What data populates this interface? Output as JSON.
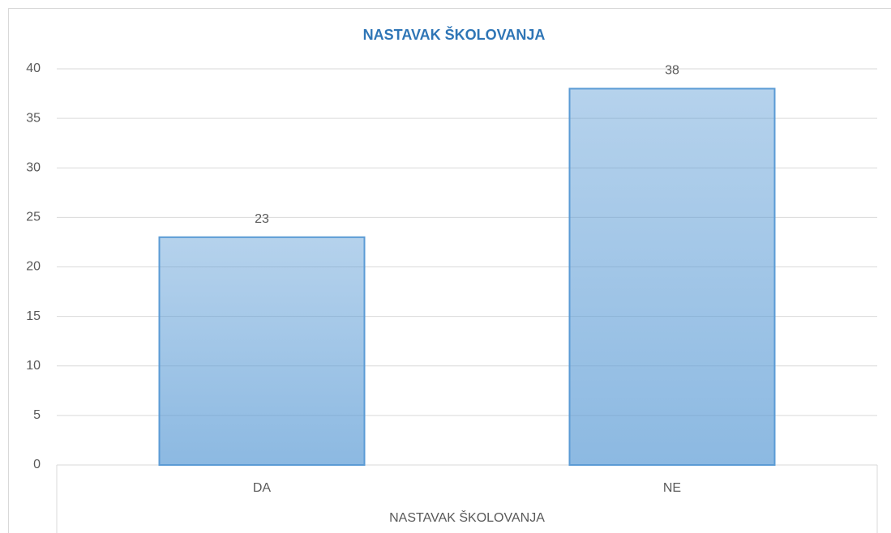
{
  "chart_data": {
    "type": "bar",
    "title": "NASTAVAK ŠKOLOVANJA",
    "x_label": "NASTAVAK ŠKOLOVANJA",
    "categories": [
      "DA",
      "NE"
    ],
    "values": [
      23,
      38
    ],
    "color": "#5b9bd5",
    "ylim": [
      0,
      40
    ],
    "yticks": [
      0,
      5,
      10,
      15,
      20,
      25,
      30,
      35,
      40
    ],
    "grid": true,
    "data_labels": true
  }
}
